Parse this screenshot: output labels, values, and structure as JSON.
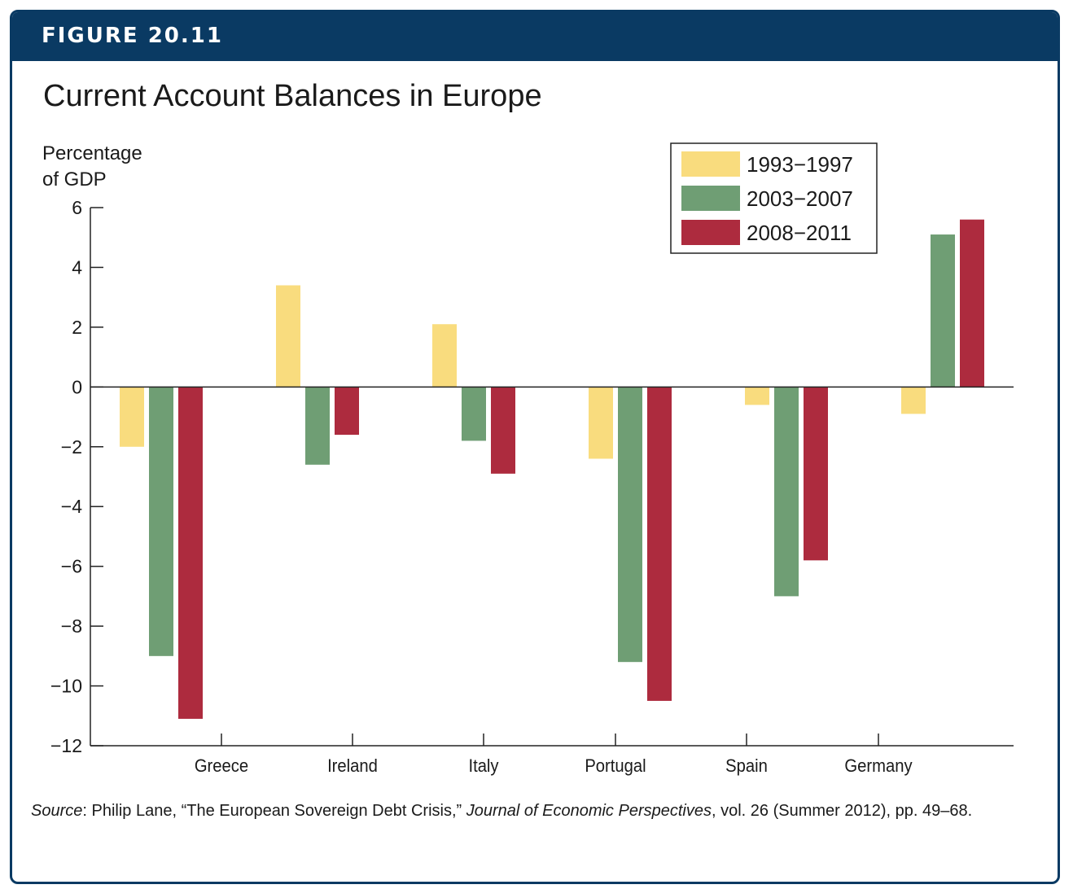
{
  "figure_label": "FIGURE 20.11",
  "title": "Current Account Balances in Europe",
  "source": {
    "prefix": "Source",
    "text1": ": Philip Lane, “The European Sovereign Debt Crisis,” ",
    "journal": "Journal of Economic Perspectives",
    "text2": ", vol. 26 (Summer 2012), pp. 49–68."
  },
  "colors": {
    "frame": "#0a3a63",
    "series": [
      "#f9dc7e",
      "#6f9e74",
      "#ad2b3e"
    ]
  },
  "chart_data": {
    "type": "bar",
    "ylabel_lines": [
      "Percentage",
      "of GDP"
    ],
    "ylim": [
      -12,
      6
    ],
    "yticks": [
      6,
      4,
      2,
      0,
      -2,
      -4,
      -6,
      -8,
      -10,
      -12
    ],
    "ytick_labels": [
      "6",
      "4",
      "2",
      "0",
      "−2",
      "−4",
      "−6",
      "−8",
      "−10",
      "−12"
    ],
    "categories": [
      "Greece",
      "Ireland",
      "Italy",
      "Portugal",
      "Spain",
      "Germany"
    ],
    "series": [
      {
        "name": "1993−1997",
        "values": [
          -2.0,
          3.4,
          2.1,
          -2.4,
          -0.6,
          -0.9
        ]
      },
      {
        "name": "2003−2007",
        "values": [
          -9.0,
          -2.6,
          -1.8,
          -9.2,
          -7.0,
          5.1
        ]
      },
      {
        "name": "2008−2011",
        "values": [
          -11.1,
          -1.6,
          -2.9,
          -10.5,
          -5.8,
          5.6
        ]
      }
    ],
    "legend_position": "top-right",
    "grid": false
  }
}
